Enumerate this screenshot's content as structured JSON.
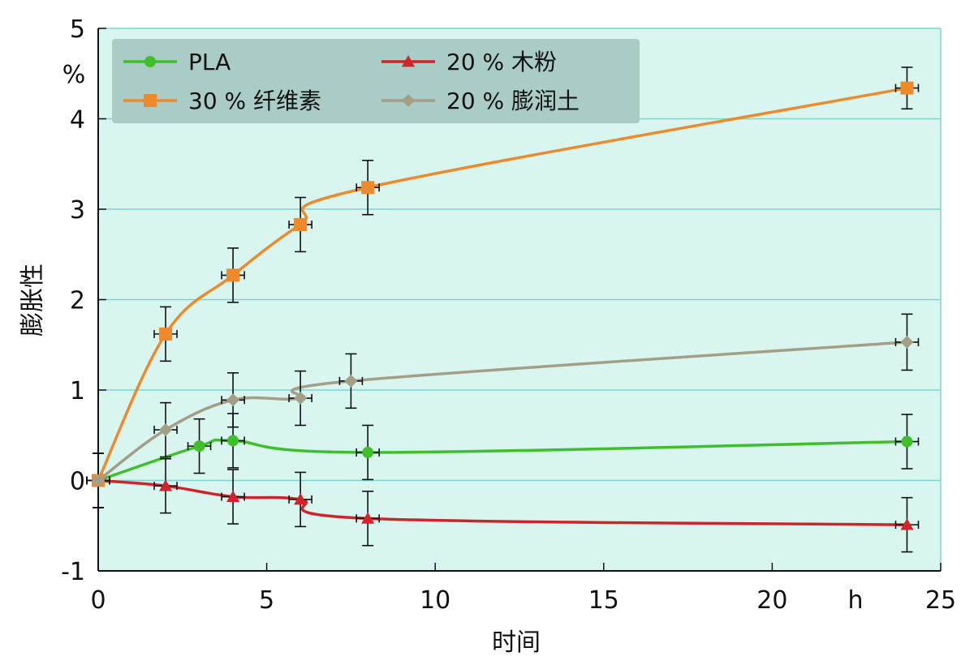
{
  "chart_data": {
    "type": "line",
    "xlabel": "时间",
    "x_unit": "h",
    "ylabel": "膨胀性",
    "y_unit": "%",
    "xlim": [
      0,
      25
    ],
    "ylim": [
      -1,
      5
    ],
    "xticks": [
      0,
      5,
      10,
      15,
      20,
      25
    ],
    "yticks": [
      -1,
      0,
      1,
      2,
      3,
      4,
      5
    ],
    "grid": "horizontal",
    "legend_position": "top-left",
    "background_color": "#d9f5ef",
    "series": [
      {
        "name": "PLA",
        "color": "#3fc02b",
        "marker": "circle",
        "points": [
          {
            "x": 0,
            "y": 0,
            "err": 0.3
          },
          {
            "x": 3,
            "y": 0.38,
            "err": 0.3
          },
          {
            "x": 4,
            "y": 0.44,
            "err": 0.3
          },
          {
            "x": 8,
            "y": 0.31,
            "err": 0.3
          },
          {
            "x": 24,
            "y": 0.43,
            "err": 0.3
          }
        ]
      },
      {
        "name": "20 % 木粉",
        "color": "#d2232a",
        "marker": "triangle",
        "points": [
          {
            "x": 0,
            "y": 0,
            "err": 0.3
          },
          {
            "x": 2,
            "y": -0.06,
            "err": 0.3
          },
          {
            "x": 4,
            "y": -0.18,
            "err": 0.3
          },
          {
            "x": 6,
            "y": -0.21,
            "err": 0.3
          },
          {
            "x": 8,
            "y": -0.42,
            "err": 0.3
          },
          {
            "x": 24,
            "y": -0.49,
            "err": 0.3
          }
        ]
      },
      {
        "name": "30 % 纤维素",
        "color": "#ee8a2b",
        "marker": "square",
        "points": [
          {
            "x": 0,
            "y": 0,
            "err": 0.3
          },
          {
            "x": 2,
            "y": 1.62,
            "err": 0.3
          },
          {
            "x": 4,
            "y": 2.27,
            "err": 0.3
          },
          {
            "x": 6,
            "y": 2.83,
            "err": 0.3
          },
          {
            "x": 8,
            "y": 3.24,
            "err": 0.3
          },
          {
            "x": 24,
            "y": 4.34,
            "err": 0.23
          }
        ]
      },
      {
        "name": "20 % 膨润土",
        "color": "#a39f87",
        "marker": "diamond",
        "points": [
          {
            "x": 0,
            "y": 0,
            "err": 0.3
          },
          {
            "x": 2,
            "y": 0.56,
            "err": 0.3
          },
          {
            "x": 4,
            "y": 0.89,
            "err": 0.3
          },
          {
            "x": 6,
            "y": 0.91,
            "err": 0.3
          },
          {
            "x": 7.5,
            "y": 1.1,
            "err": 0.3
          },
          {
            "x": 24,
            "y": 1.53,
            "err": 0.31
          }
        ]
      }
    ]
  }
}
